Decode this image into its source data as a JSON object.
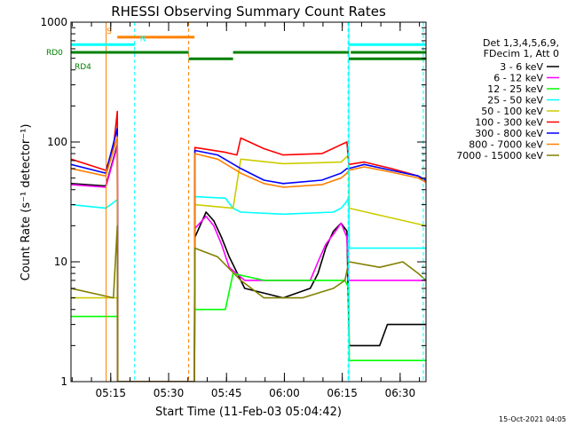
{
  "chart_data": {
    "type": "line",
    "title": "RHESSI Observing Summary Count Rates",
    "xlabel": "Start Time (11-Feb-03 05:04:42)",
    "ylabel": "Count Rate (s⁻¹ detector⁻¹)",
    "x_unit": "minutes since 05:04:42 UT",
    "xlim": [
      0,
      92
    ],
    "ylim": [
      1,
      1000
    ],
    "yscale": "log",
    "y_ticks": [
      "1",
      "10",
      "100",
      "1000"
    ],
    "x_ticks": [
      {
        "label": "05:15",
        "value": 10.3
      },
      {
        "label": "05:30",
        "value": 25.3
      },
      {
        "label": "05:45",
        "value": 40.3
      },
      {
        "label": "06:00",
        "value": 55.3
      },
      {
        "label": "06:15",
        "value": 70.3
      },
      {
        "label": "06:30",
        "value": 85.3
      }
    ],
    "legend_header": [
      "Det 1,3,4,5,6,9,",
      "FDecim 1, Att 0"
    ],
    "legend_position": "right",
    "series": [
      {
        "name": "3 - 6 keV",
        "color": "#000000",
        "x": [
          0,
          9,
          12,
          12.1,
          32,
          32.1,
          35,
          37,
          39,
          41,
          45,
          55,
          62,
          64,
          66,
          68,
          70,
          71.5,
          72,
          72.1,
          80,
          82,
          90,
          92
        ],
        "y": [
          45,
          43,
          95,
          1,
          1,
          16,
          26,
          22,
          16,
          11,
          6,
          5,
          6,
          8,
          13,
          18,
          21,
          18,
          3,
          2,
          2,
          3,
          3,
          3
        ]
      },
      {
        "name": "6 - 12 keV",
        "color": "#ff00ff",
        "x": [
          0,
          9,
          12,
          12.1,
          32,
          32.1,
          35,
          37,
          39,
          41,
          45,
          55,
          62,
          64,
          66,
          68,
          70,
          71.5,
          72,
          72.1,
          80,
          82,
          90,
          92
        ],
        "y": [
          44,
          42,
          92,
          1,
          1,
          19,
          24,
          20,
          14,
          9,
          7,
          7,
          7,
          10,
          14,
          17,
          21,
          16,
          7,
          7,
          7,
          7,
          7,
          7
        ]
      },
      {
        "name": "12 - 25 keV",
        "color": "#00ff00",
        "x": [
          0,
          12,
          12.1,
          32,
          32.1,
          40,
          42,
          50,
          60,
          68,
          71,
          72,
          72.1,
          92
        ],
        "y": [
          3.5,
          3.5,
          1,
          1,
          4,
          4,
          8,
          7,
          7,
          7,
          7,
          6,
          1.5,
          1.5
        ]
      },
      {
        "name": "25 - 50 keV",
        "color": "#00ffff",
        "x": [
          0,
          9,
          12,
          12.1,
          32,
          32.1,
          40,
          42,
          44,
          55,
          68,
          70,
          71.5,
          72,
          72.1,
          90,
          92
        ],
        "y": [
          30,
          28,
          33,
          1,
          1,
          35,
          34,
          28,
          26,
          25,
          26,
          28,
          32,
          35,
          13,
          13,
          13
        ]
      },
      {
        "name": "50 - 100 keV",
        "color": "#cccc00",
        "x": [
          0,
          12,
          12.1,
          32,
          32.1,
          42,
          44,
          55,
          70,
          72,
          72.1,
          92
        ],
        "y": [
          5,
          5,
          1,
          1,
          30,
          28,
          72,
          66,
          68,
          78,
          28,
          20
        ]
      },
      {
        "name": "100 - 300 keV",
        "color": "#ff0000",
        "x": [
          0,
          9,
          11,
          12,
          12.1,
          32,
          32.1,
          40,
          43,
          44,
          50,
          55,
          65,
          70,
          71.5,
          72,
          76,
          83,
          90,
          92
        ],
        "y": [
          72,
          58,
          90,
          180,
          1,
          1,
          90,
          82,
          78,
          108,
          88,
          78,
          80,
          95,
          100,
          65,
          68,
          60,
          52,
          46
        ]
      },
      {
        "name": "300 - 800 keV",
        "color": "#0000ff",
        "x": [
          0,
          9,
          12,
          12.1,
          32,
          32.1,
          38,
          44,
          50,
          55,
          65,
          70,
          71.5,
          72,
          76,
          83,
          90,
          92
        ],
        "y": [
          65,
          55,
          130,
          1,
          1,
          85,
          78,
          60,
          48,
          45,
          48,
          55,
          60,
          60,
          65,
          58,
          52,
          48
        ]
      },
      {
        "name": "800 - 7000 keV",
        "color": "#ff8000",
        "x": [
          0,
          9,
          12,
          12.1,
          32,
          32.1,
          38,
          44,
          50,
          55,
          65,
          70,
          71.5,
          72,
          76,
          83,
          90,
          92
        ],
        "y": [
          60,
          52,
          110,
          1,
          1,
          80,
          72,
          55,
          45,
          42,
          44,
          50,
          55,
          58,
          62,
          56,
          50,
          46
        ]
      },
      {
        "name": "7000 - 15000 keV",
        "color": "#808000",
        "x": [
          0,
          11,
          12,
          12.1,
          32,
          32.1,
          38,
          44,
          50,
          60,
          68,
          71,
          72,
          72.1,
          80,
          86,
          90,
          92
        ],
        "y": [
          6,
          5,
          20,
          1,
          1,
          13,
          11,
          7,
          5,
          5,
          6,
          7,
          10,
          10,
          9,
          10,
          8,
          7
        ]
      }
    ],
    "mode_bars": [
      {
        "label": "S",
        "color": "#ff8000",
        "level": 750,
        "segments": [
          [
            0,
            12
          ],
          [
            12,
            32
          ]
        ],
        "show_from": 12
      },
      {
        "label": "N",
        "color": "#00ffff",
        "level": 650,
        "segments": [
          [
            0,
            16.5
          ],
          [
            72,
            92
          ]
        ]
      },
      {
        "label": "RD0",
        "color": "#008000",
        "level": 560,
        "segments": [
          [
            0,
            30.5
          ],
          [
            42,
            71.5
          ],
          [
            71.5,
            72
          ],
          [
            72.5,
            92
          ]
        ]
      },
      {
        "label": "RD4",
        "color": "#008000",
        "level": 495,
        "segments": [
          [
            30.5,
            42
          ],
          [
            72,
            92
          ]
        ]
      }
    ],
    "vlines": [
      {
        "x": 0,
        "color": "#00ffff"
      },
      {
        "x": 16.5,
        "color": "#00ffff"
      },
      {
        "x": 30.5,
        "color": "#ff8000"
      },
      {
        "x": 71.8,
        "color": "#00ffff"
      },
      {
        "x": 91.3,
        "color": "#00ffff"
      }
    ],
    "solid_vlines": [
      {
        "x": 9.1,
        "color": "#ff8000"
      },
      {
        "x": 72.0,
        "color": "#00ffff"
      }
    ]
  },
  "footer_timestamp": "15-Oct-2021 04:05"
}
